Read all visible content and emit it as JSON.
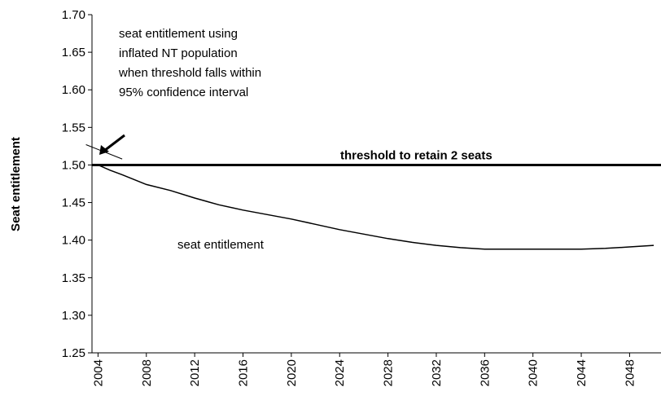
{
  "chart_data": {
    "type": "line",
    "y_label": "Seat entitlement",
    "xlim": [
      2003.5,
      2050.6
    ],
    "ylim": [
      1.25,
      1.7
    ],
    "xticks": [
      2004,
      2008,
      2012,
      2016,
      2020,
      2024,
      2028,
      2032,
      2036,
      2040,
      2044,
      2048
    ],
    "yticks": [
      {
        "value": 1.25,
        "label": "1.25"
      },
      {
        "value": 1.3,
        "label": "1.30"
      },
      {
        "value": 1.35,
        "label": "1.35"
      },
      {
        "value": 1.4,
        "label": "1.40"
      },
      {
        "value": 1.45,
        "label": "1.45"
      },
      {
        "value": 1.5,
        "label": "1.50"
      },
      {
        "value": 1.55,
        "label": "1.55"
      },
      {
        "value": 1.6,
        "label": "1.60"
      },
      {
        "value": 1.65,
        "label": "1.65"
      },
      {
        "value": 1.7,
        "label": "1.70"
      }
    ],
    "series": [
      {
        "name": "seat entitlement",
        "color": "#000000",
        "x": [
          2004,
          2005,
          2006,
          2008,
          2010,
          2012,
          2014,
          2016,
          2018,
          2020,
          2022,
          2024,
          2026,
          2028,
          2030,
          2032,
          2034,
          2036,
          2038,
          2040,
          2042,
          2044,
          2046,
          2048,
          2050
        ],
        "values": [
          1.5,
          1.493,
          1.487,
          1.474,
          1.466,
          1.456,
          1.447,
          1.44,
          1.434,
          1.428,
          1.421,
          1.414,
          1.408,
          1.402,
          1.397,
          1.393,
          1.39,
          1.388,
          1.388,
          1.388,
          1.388,
          1.388,
          1.389,
          1.391,
          1.393
        ]
      },
      {
        "color": "#000000",
        "x": [
          2003,
          2006
        ],
        "values": [
          1.527,
          1.508
        ]
      }
    ],
    "threshold": {
      "label": "threshold to retain 2 seats",
      "value": 1.5,
      "color": "#000000"
    },
    "annotations": [
      {
        "lines": [
          "seat entitlement using",
          "inflated NT population",
          "when threshold falls within",
          "95% confidence interval"
        ]
      }
    ]
  }
}
